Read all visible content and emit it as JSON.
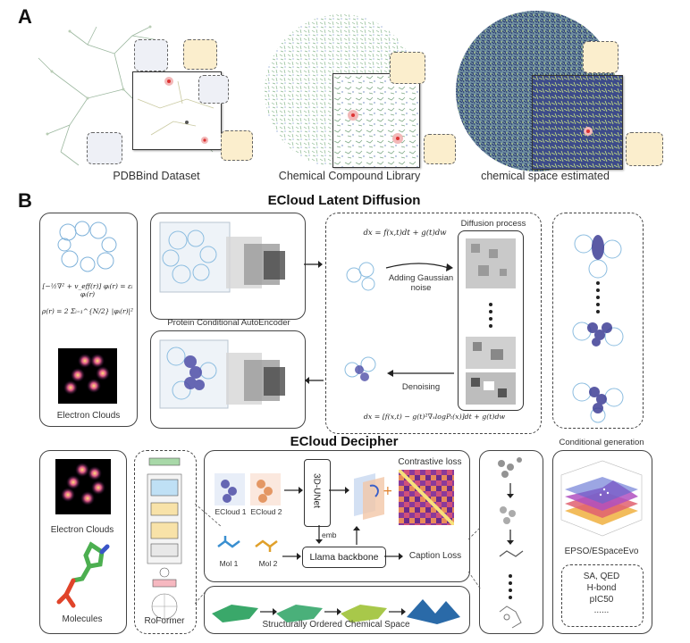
{
  "panelA": {
    "label": "A",
    "captions": [
      "PDBBind Dataset",
      "Chemical Compound Library",
      "chemical space estimated"
    ]
  },
  "panelB": {
    "label": "B",
    "latent_title": "ECloud Latent Diffusion",
    "decipher_title": "ECloud Decipher",
    "eq1": "[−½∇² + v_eff(r)] φᵢ(r) = εᵢ φᵢ(r)",
    "eq2": "ρ(r) = 2 Σᵢ₌₁^{N/2} |φᵢ(r)|²",
    "electron_clouds_1": "Electron Clouds",
    "autoencoder": "Protein Conditional AutoEncoder",
    "diffusion_process": "Diffusion process",
    "forward_eq": "dx = f(x,t)dt + g(t)dw",
    "adding_noise": "Adding Gaussian noise",
    "denoising": "Denoising",
    "reverse_eq": "dx = [f(x,t) − g(t)²∇ₓlogPₜ(x)]dt + g(t)dw",
    "electron_clouds_2": "Electron Clouds",
    "molecules": "Molecules",
    "roformer": "RoFormer",
    "ecloud1": "ECloud 1",
    "ecloud2": "ECloud 2",
    "unet": "3D-UNet",
    "contrastive_loss": "Contrastive loss",
    "emb": "emb",
    "mol1": "Mol 1",
    "mol2": "Mol 2",
    "llama": "Llama backbone",
    "caption_loss": "Caption Loss",
    "ordered_space": "Structurally Ordered Chemical Space",
    "conditional_generation": "Conditional generation",
    "espo": "EPSO/ESpaceEvo",
    "props": [
      "SA, QED",
      "H-bond",
      "pIC50",
      "......"
    ]
  }
}
